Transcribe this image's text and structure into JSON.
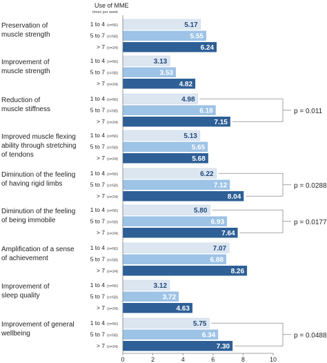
{
  "chart_data": {
    "type": "bar",
    "orientation": "horizontal",
    "header": {
      "title": "Use of MME",
      "subtitle": "times per week"
    },
    "groups": [
      {
        "label": "1 to 4",
        "n": "(n=56)"
      },
      {
        "label": "5 to 7",
        "n": "(n=58)"
      },
      {
        "label": "> 7",
        "n": "(n=24)"
      }
    ],
    "categories": [
      {
        "label_lines": [
          "Preservation of",
          "muscle strength"
        ],
        "values": [
          5.17,
          5.55,
          6.24
        ],
        "p_value": ""
      },
      {
        "label_lines": [
          "Improvement of",
          "muscle strength"
        ],
        "values": [
          3.13,
          3.53,
          4.82
        ],
        "p_value": ""
      },
      {
        "label_lines": [
          "Reduction of",
          "muscle stiffness"
        ],
        "values": [
          4.98,
          6.18,
          7.15
        ],
        "p_value": "p = 0.011"
      },
      {
        "label_lines": [
          "Improved muscle flexing",
          "ability through stretching",
          "of tendons"
        ],
        "values": [
          5.13,
          5.65,
          5.68
        ],
        "p_value": ""
      },
      {
        "label_lines": [
          "Diminution of the feeling",
          "of having rigid limbs"
        ],
        "values": [
          6.22,
          7.12,
          8.04
        ],
        "p_value": "p = 0.0288"
      },
      {
        "label_lines": [
          "Diminution of the feeling",
          "of being immobile"
        ],
        "values": [
          5.8,
          6.93,
          7.64
        ],
        "p_value": "p = 0.0177"
      },
      {
        "label_lines": [
          "Amplification of a sense",
          "of achievement"
        ],
        "values": [
          7.07,
          6.88,
          8.26
        ],
        "p_value": ""
      },
      {
        "label_lines": [
          "Improvement of",
          "sleep quality"
        ],
        "values": [
          3.12,
          3.72,
          4.63
        ],
        "p_value": ""
      },
      {
        "label_lines": [
          "Improvement of general",
          "wellbeing"
        ],
        "values": [
          5.75,
          6.34,
          7.3
        ],
        "p_value": "p = 0.0488"
      }
    ],
    "x_ticks": [
      0,
      2,
      4,
      6,
      8,
      10
    ],
    "xlim": [
      0,
      10
    ],
    "colors": [
      "#dce6f1",
      "#9dc3e6",
      "#2e5f96"
    ],
    "value_label_colors": [
      "#1f497d",
      "#ffffff",
      "#ffffff"
    ]
  }
}
